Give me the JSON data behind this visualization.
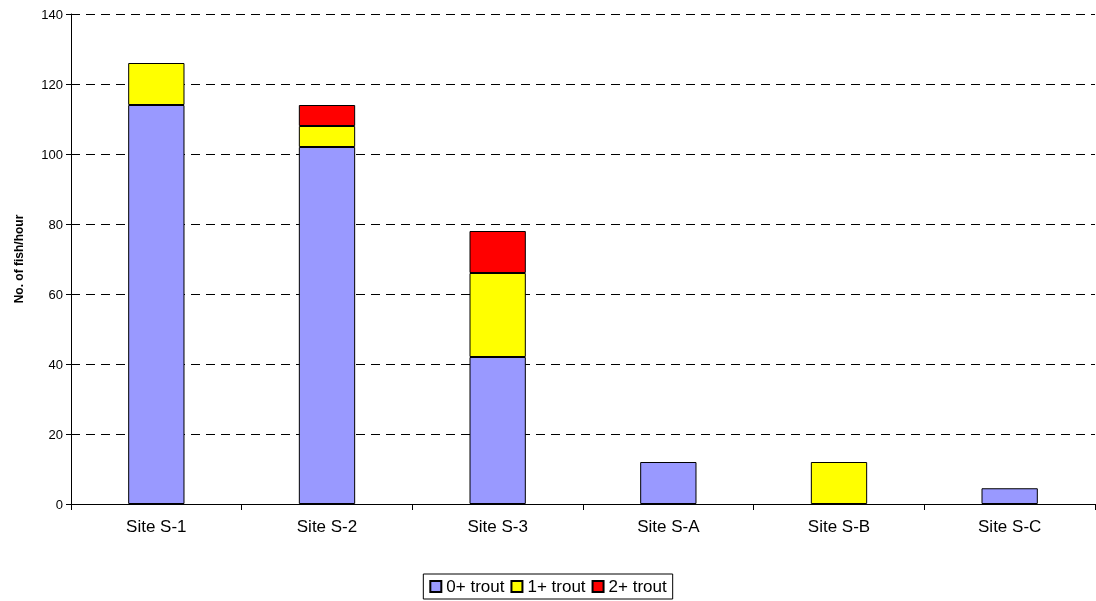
{
  "chart_data": {
    "type": "bar",
    "ylabel": "No. of fish/hour",
    "categories": [
      "Site S-1",
      "Site S-2",
      "Site S-3",
      "Site S-A",
      "Site S-B",
      "Site S-C"
    ],
    "series": [
      {
        "name": "0+ trout",
        "color": "#9999ff",
        "values": [
          114,
          102,
          42,
          12,
          null,
          4.5
        ]
      },
      {
        "name": "1+ trout",
        "color": "#ffff00",
        "values": [
          12,
          6,
          24,
          null,
          12,
          null
        ]
      },
      {
        "name": "2+ trout",
        "color": "#ff0000",
        "values": [
          null,
          6,
          12,
          null,
          null,
          null
        ]
      }
    ],
    "stacked": true,
    "ylim": [
      0,
      140
    ],
    "yticks": [
      0,
      20,
      40,
      60,
      80,
      100,
      120,
      140
    ],
    "grid": "y",
    "legend": "bottom"
  }
}
